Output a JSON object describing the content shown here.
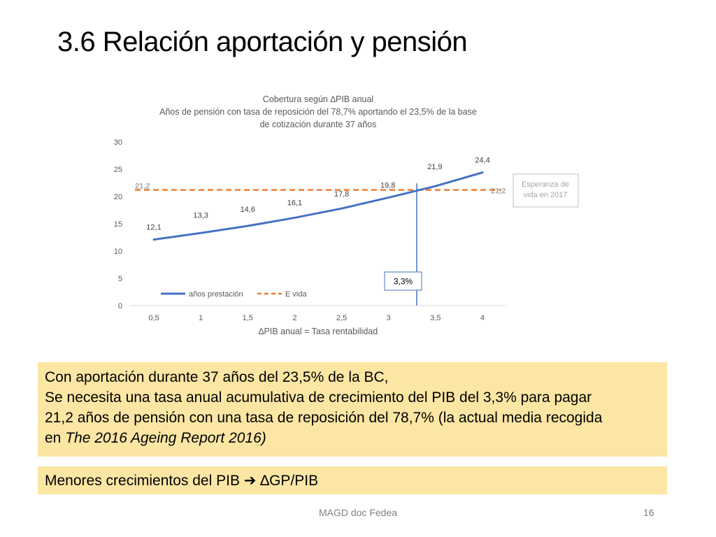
{
  "slide": {
    "title": "3.6 Relación aportación y pensión",
    "note": {
      "line1": "Con aportación durante 37 años del 23,5% de la BC,",
      "line2": "Se necesita una tasa anual acumulativa de crecimiento del PIB del 3,3% para pagar",
      "line3": "21,2 años de pensión con una tasa de reposición del 78,7% (la actual media recogida",
      "line4_prefix": "en ",
      "line4_italic": "The 2016 Ageing Report 2016)"
    },
    "conclusion": {
      "prefix": "Menores crecimientos del PIB",
      "arrow": "➔",
      "suffix": "∆GP/PIB"
    },
    "footer": "MAGD doc Fedea",
    "page_number": "16"
  },
  "chart_data": {
    "type": "line",
    "title": [
      "Cobertura según ∆PIB anual",
      "Años de pensión con tasa de reposición del 78,7% aportando el 23,5% de la base",
      "de cotización durante 37 años"
    ],
    "xlabel": "∆PIB anual = Tasa rentabilidad",
    "ylabel": "",
    "x": [
      0.5,
      1,
      1.5,
      2,
      2.5,
      3,
      3.5,
      4
    ],
    "x_tick_labels": [
      "0,5",
      "1",
      "1,5",
      "2",
      "2,5",
      "3",
      "3,5",
      "4"
    ],
    "y_ticks": [
      0,
      5,
      10,
      15,
      20,
      25,
      30
    ],
    "ylim": [
      0,
      30
    ],
    "grid": false,
    "legend_position": "bottom-left",
    "series": [
      {
        "name": "años prestación",
        "color": "#4472c4",
        "style": "solid",
        "values": [
          12.1,
          13.3,
          14.6,
          16.1,
          17.8,
          19.8,
          21.9,
          24.4
        ],
        "labels": [
          "12,1",
          "13,3",
          "14,6",
          "16,1",
          "17,8",
          "19,8",
          "21,9",
          "24,4"
        ]
      },
      {
        "name": "E vida",
        "color": "#ed7d31",
        "style": "dashed",
        "values": [
          21.2,
          21.2,
          21.2,
          21.2,
          21.2,
          21.2,
          21.2,
          21.2
        ],
        "end_label": "21,2"
      }
    ],
    "annotations": {
      "intersection_x": 3.3,
      "intersection_label": "3,3%",
      "life_expectancy_box": [
        "Esperanza de",
        "vida en 2017"
      ]
    }
  }
}
